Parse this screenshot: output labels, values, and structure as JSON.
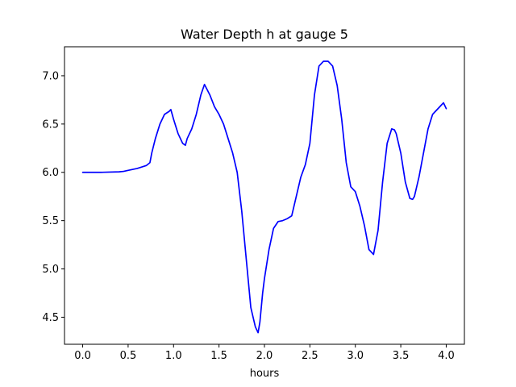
{
  "chart_data": {
    "type": "line",
    "title": "Water Depth h at gauge 5",
    "xlabel": "hours",
    "ylabel": "",
    "xlim": [
      -0.2,
      4.2
    ],
    "ylim": [
      4.22,
      7.3
    ],
    "xticks": [
      0.0,
      0.5,
      1.0,
      1.5,
      2.0,
      2.5,
      3.0,
      3.5,
      4.0
    ],
    "xtick_labels": [
      "0.0",
      "0.5",
      "1.0",
      "1.5",
      "2.0",
      "2.5",
      "3.0",
      "3.5",
      "4.0"
    ],
    "yticks": [
      4.5,
      5.0,
      5.5,
      6.0,
      6.5,
      7.0
    ],
    "ytick_labels": [
      "4.5",
      "5.0",
      "5.5",
      "6.0",
      "6.5",
      "7.0"
    ],
    "grid": false,
    "legend": "none",
    "series": [
      {
        "color": "#0000ff",
        "x": [
          0.0,
          0.2,
          0.4,
          0.45,
          0.5,
          0.6,
          0.7,
          0.74,
          0.76,
          0.8,
          0.85,
          0.9,
          0.95,
          0.97,
          1.0,
          1.05,
          1.1,
          1.13,
          1.15,
          1.2,
          1.25,
          1.3,
          1.34,
          1.4,
          1.45,
          1.5,
          1.55,
          1.6,
          1.65,
          1.7,
          1.75,
          1.8,
          1.85,
          1.9,
          1.93,
          1.95,
          1.98,
          2.0,
          2.05,
          2.1,
          2.15,
          2.2,
          2.25,
          2.3,
          2.35,
          2.4,
          2.45,
          2.5,
          2.55,
          2.6,
          2.65,
          2.7,
          2.75,
          2.8,
          2.85,
          2.9,
          2.95,
          3.0,
          3.05,
          3.1,
          3.15,
          3.2,
          3.25,
          3.3,
          3.35,
          3.4,
          3.43,
          3.45,
          3.5,
          3.55,
          3.6,
          3.63,
          3.65,
          3.7,
          3.75,
          3.8,
          3.85,
          3.9,
          3.95,
          3.97,
          4.0
        ],
        "y": [
          6.0,
          6.0,
          6.005,
          6.01,
          6.02,
          6.04,
          6.07,
          6.1,
          6.2,
          6.35,
          6.5,
          6.6,
          6.63,
          6.65,
          6.55,
          6.4,
          6.3,
          6.28,
          6.35,
          6.45,
          6.6,
          6.8,
          6.91,
          6.8,
          6.68,
          6.6,
          6.5,
          6.35,
          6.2,
          6.0,
          5.6,
          5.1,
          4.6,
          4.4,
          4.34,
          4.45,
          4.75,
          4.9,
          5.2,
          5.42,
          5.49,
          5.5,
          5.52,
          5.55,
          5.75,
          5.95,
          6.08,
          6.3,
          6.8,
          7.1,
          7.15,
          7.15,
          7.1,
          6.9,
          6.55,
          6.1,
          5.85,
          5.8,
          5.65,
          5.45,
          5.2,
          5.15,
          5.4,
          5.9,
          6.3,
          6.45,
          6.44,
          6.4,
          6.2,
          5.9,
          5.73,
          5.72,
          5.75,
          5.95,
          6.2,
          6.45,
          6.6,
          6.65,
          6.7,
          6.72,
          6.66
        ]
      }
    ]
  }
}
